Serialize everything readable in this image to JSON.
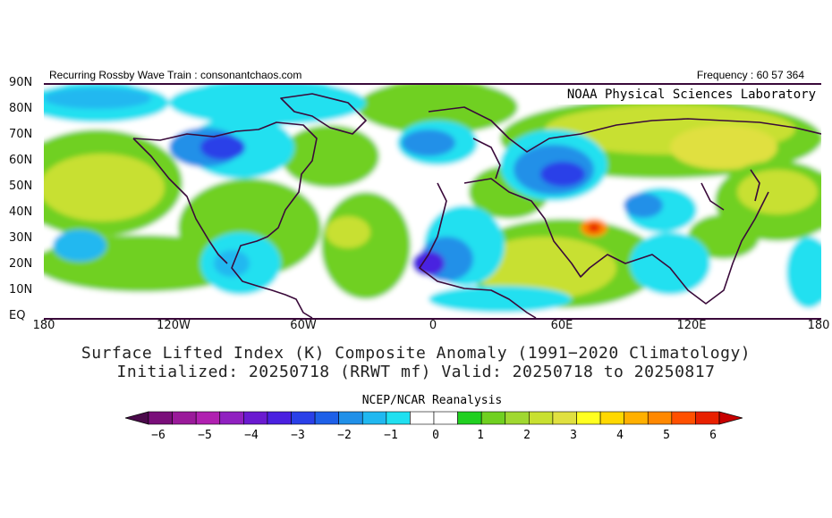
{
  "header": {
    "left": "Recurring Rossby Wave Train : consonantchaos.com",
    "right": "Frequency : 60 57 364"
  },
  "map": {
    "lab_label": "NOAA Physical Sciences Laboratory",
    "lat_labels": [
      "90N",
      "80N",
      "70N",
      "60N",
      "50N",
      "40N",
      "30N",
      "20N",
      "10N",
      "EQ"
    ],
    "lon_labels": [
      "180",
      "120W",
      "60W",
      "0",
      "60E",
      "120E",
      "180"
    ]
  },
  "title": {
    "line1": "Surface Lifted Index (K) Composite Anomaly (1991−2020 Climatology)",
    "line2": "Initialized: 20250718 (RRWT mf) Valid: 20250718 to 20250817"
  },
  "colorbar": {
    "title": "NCEP/NCAR Reanalysis",
    "ticks": [
      "−6",
      "−5",
      "−4",
      "−3",
      "−2",
      "−1",
      "0",
      "1",
      "2",
      "3",
      "4",
      "5",
      "6"
    ],
    "colors": [
      "#4b0a4b",
      "#7a0f7a",
      "#9a1a9a",
      "#b020b0",
      "#9020c0",
      "#6a1ad0",
      "#4a20e0",
      "#2a40e8",
      "#1e60e8",
      "#2090e8",
      "#20b8f0",
      "#20e0f0",
      "#ffffff",
      "#ffffff",
      "#20d020",
      "#70d020",
      "#a0d830",
      "#c8e030",
      "#e0e040",
      "#ffff20",
      "#ffd800",
      "#ffb000",
      "#ff8800",
      "#ff5000",
      "#e82000",
      "#c80000"
    ]
  }
}
